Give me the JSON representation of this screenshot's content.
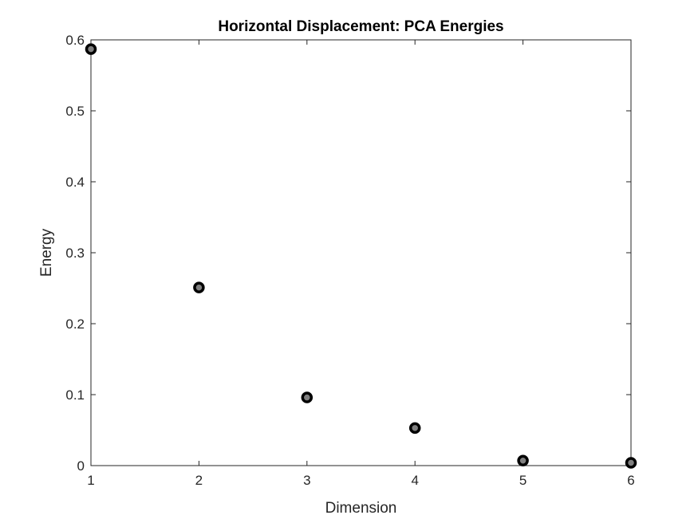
{
  "chart_data": {
    "type": "scatter",
    "title": "Horizontal Displacement: PCA Energies",
    "xlabel": "Dimension",
    "ylabel": "Energy",
    "xlim": [
      1,
      6
    ],
    "ylim": [
      0,
      0.6
    ],
    "xticks": [
      1,
      2,
      3,
      4,
      5,
      6
    ],
    "xtick_labels": [
      "1",
      "2",
      "3",
      "4",
      "5",
      "6"
    ],
    "yticks": [
      0,
      0.1,
      0.2,
      0.3,
      0.4,
      0.5,
      0.6
    ],
    "ytick_labels": [
      "0",
      "0.1",
      "0.2",
      "0.3",
      "0.4",
      "0.5",
      "0.6"
    ],
    "grid": false,
    "box": true,
    "series": [
      {
        "x": [
          1,
          2,
          3,
          4,
          5,
          6
        ],
        "y": [
          0.587,
          0.251,
          0.096,
          0.053,
          0.007,
          0.004
        ],
        "marker": "circle",
        "marker_edge_color": "#000000",
        "marker_face_color": "#808080"
      }
    ]
  }
}
